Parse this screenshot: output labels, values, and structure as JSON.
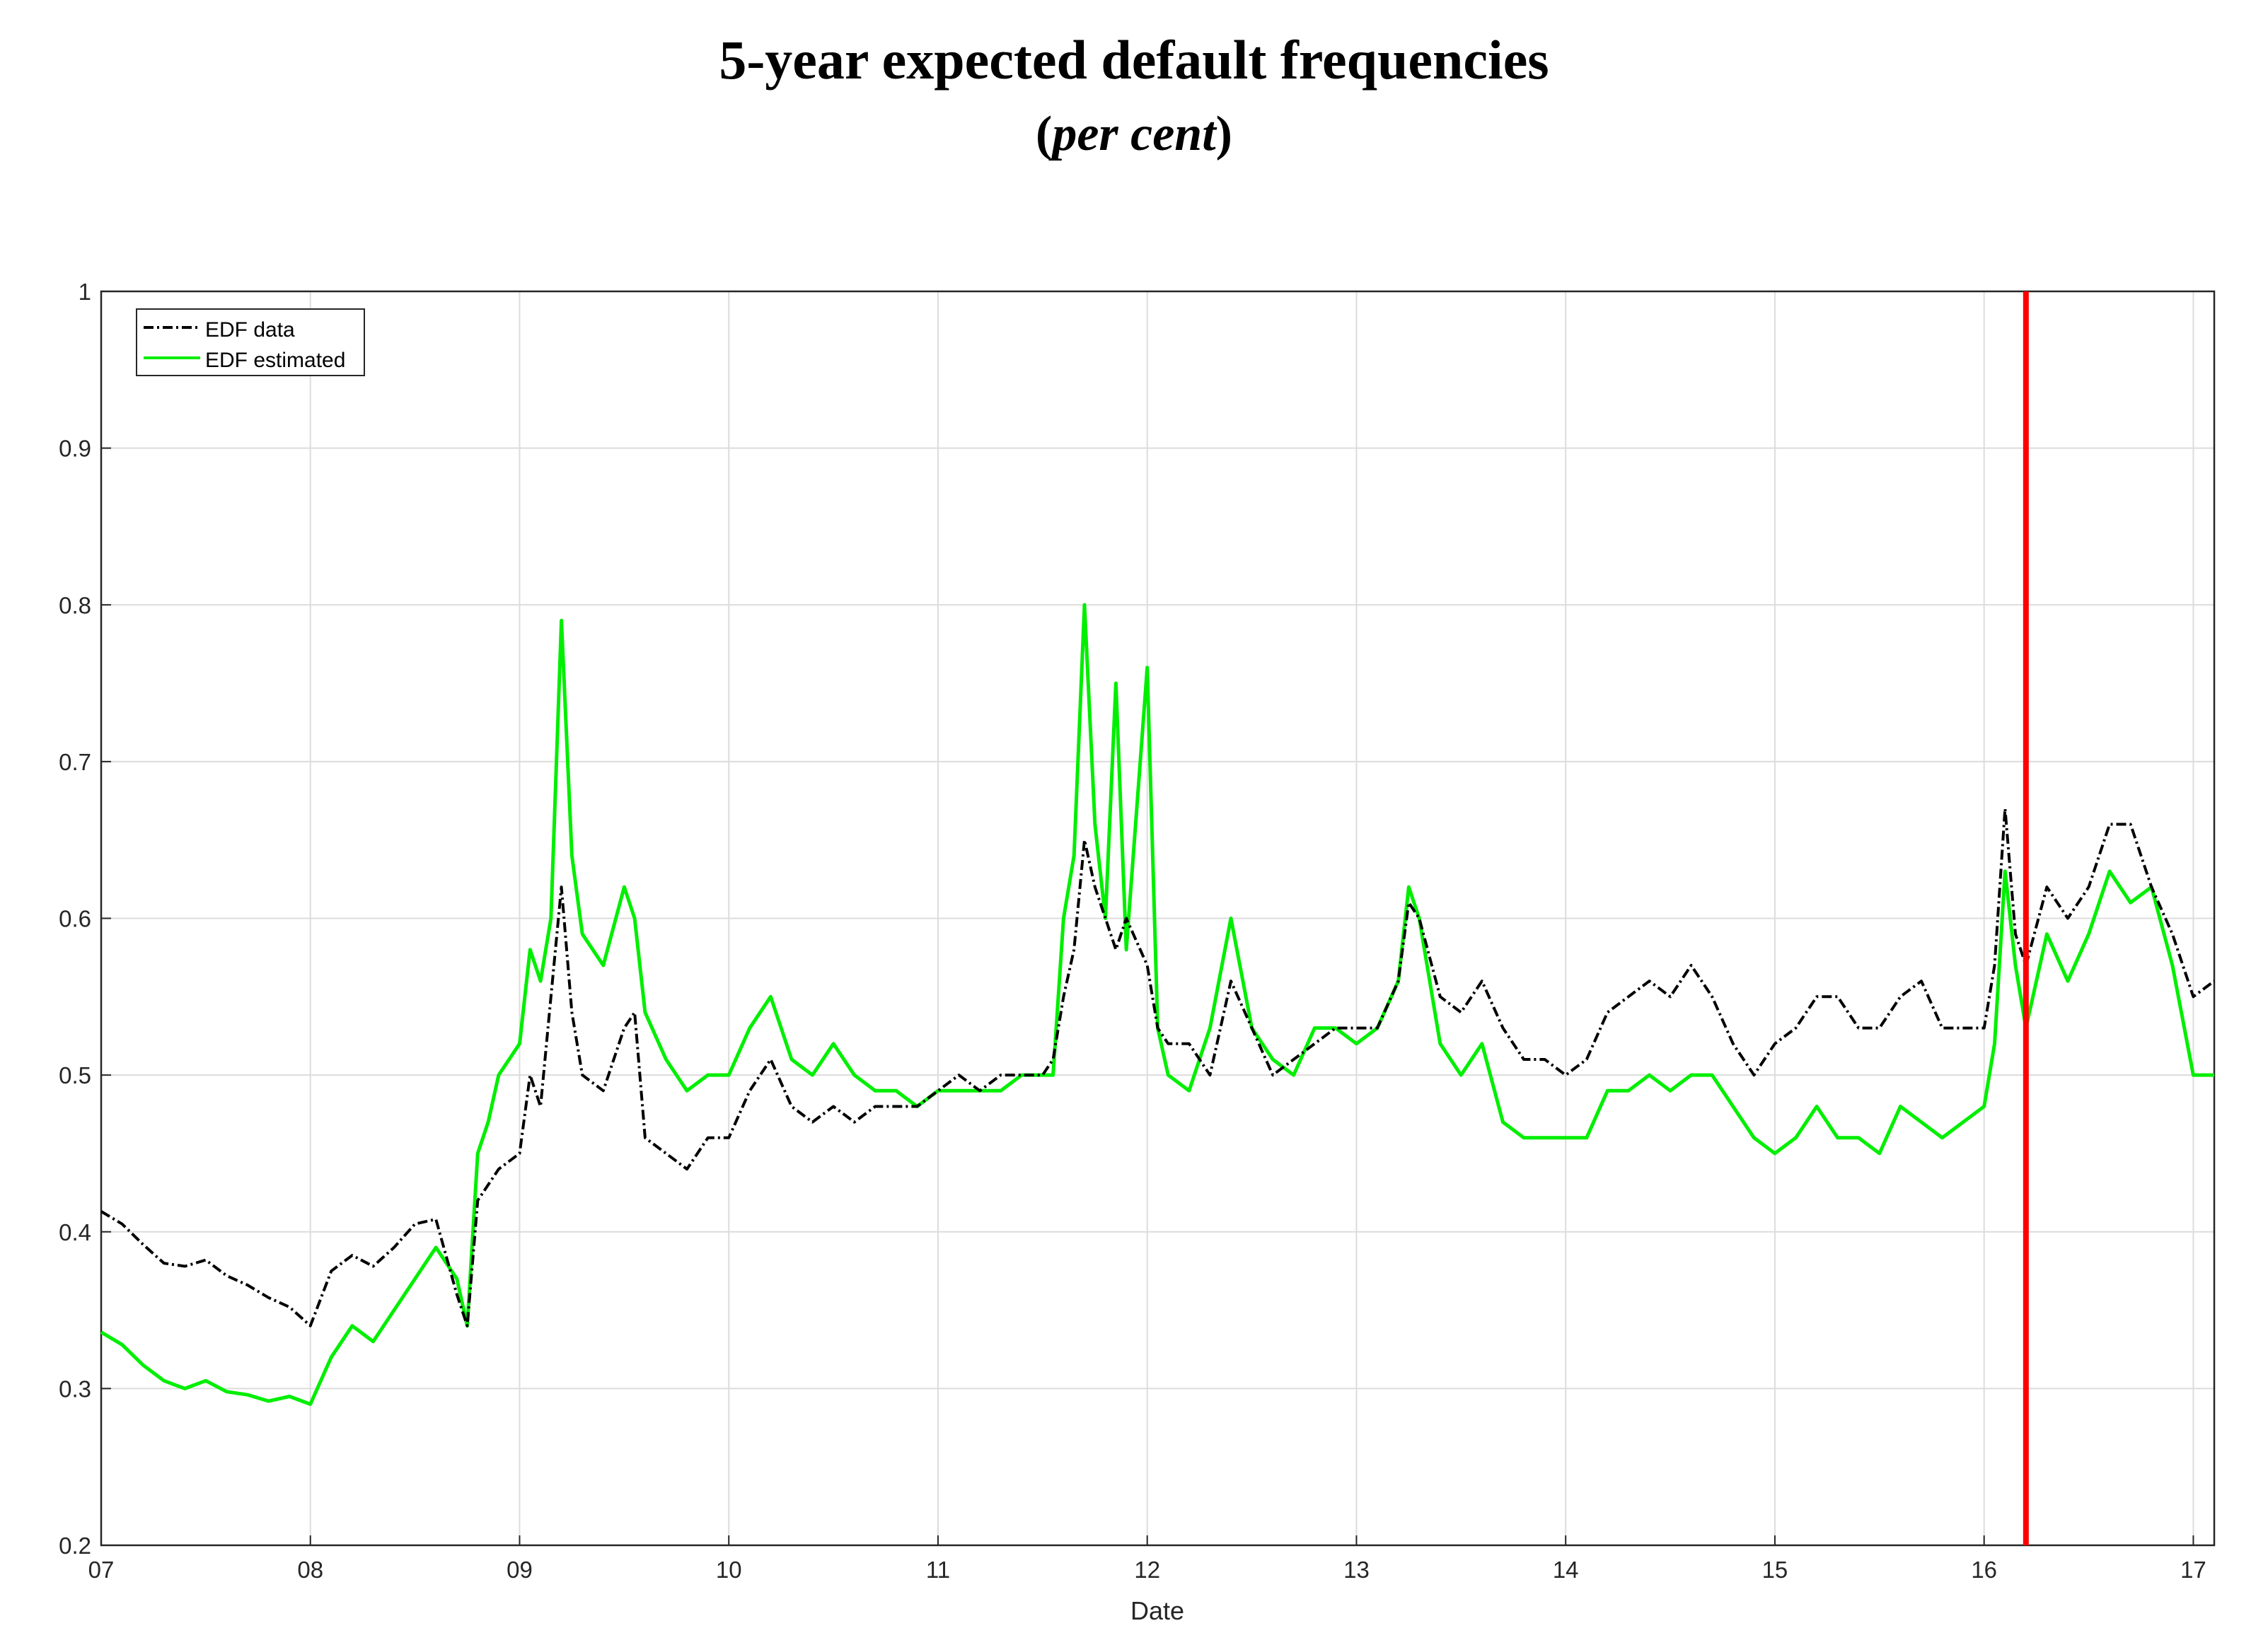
{
  "chart_data": {
    "type": "line",
    "title": "5-year expected default frequencies",
    "subtitle": "per cent",
    "xlabel": "Date",
    "ylabel": "",
    "xlim": [
      7,
      17.1
    ],
    "ylim": [
      0.2,
      1.0
    ],
    "x_ticks": [
      "07",
      "08",
      "09",
      "10",
      "11",
      "12",
      "13",
      "14",
      "15",
      "16",
      "17"
    ],
    "y_ticks": [
      "0.2",
      "0.3",
      "0.4",
      "0.5",
      "0.6",
      "0.7",
      "0.8",
      "0.9",
      "1"
    ],
    "grid": true,
    "legend_position": "top-left",
    "vertical_marker": {
      "x": 16.2,
      "color": "#ff0000"
    },
    "series": [
      {
        "name": "EDF data",
        "color": "#000000",
        "style": "dash-dot",
        "x": [
          7.0,
          7.1,
          7.2,
          7.3,
          7.4,
          7.5,
          7.6,
          7.7,
          7.8,
          7.9,
          8.0,
          8.1,
          8.2,
          8.3,
          8.4,
          8.5,
          8.6,
          8.7,
          8.75,
          8.8,
          8.85,
          8.9,
          9.0,
          9.05,
          9.1,
          9.15,
          9.2,
          9.25,
          9.3,
          9.4,
          9.5,
          9.55,
          9.6,
          9.7,
          9.8,
          9.9,
          10.0,
          10.1,
          10.2,
          10.3,
          10.4,
          10.5,
          10.6,
          10.7,
          10.8,
          10.9,
          11.0,
          11.1,
          11.2,
          11.3,
          11.4,
          11.5,
          11.55,
          11.6,
          11.65,
          11.7,
          11.75,
          11.8,
          11.85,
          11.9,
          12.0,
          12.05,
          12.1,
          12.2,
          12.3,
          12.4,
          12.5,
          12.6,
          12.7,
          12.8,
          12.9,
          13.0,
          13.1,
          13.2,
          13.25,
          13.3,
          13.4,
          13.5,
          13.6,
          13.7,
          13.8,
          13.9,
          14.0,
          14.1,
          14.2,
          14.3,
          14.4,
          14.5,
          14.6,
          14.7,
          14.8,
          14.9,
          15.0,
          15.1,
          15.2,
          15.3,
          15.4,
          15.5,
          15.6,
          15.7,
          15.8,
          15.9,
          16.0,
          16.05,
          16.1,
          16.15,
          16.2,
          16.3,
          16.4,
          16.5,
          16.6,
          16.7,
          16.8,
          16.9,
          17.0,
          17.1
        ],
        "y": [
          0.413,
          0.405,
          0.392,
          0.38,
          0.378,
          0.382,
          0.372,
          0.366,
          0.358,
          0.352,
          0.34,
          0.375,
          0.385,
          0.378,
          0.39,
          0.405,
          0.408,
          0.36,
          0.34,
          0.42,
          0.43,
          0.44,
          0.45,
          0.5,
          0.48,
          0.55,
          0.62,
          0.54,
          0.5,
          0.49,
          0.53,
          0.54,
          0.46,
          0.45,
          0.44,
          0.46,
          0.46,
          0.49,
          0.51,
          0.48,
          0.47,
          0.48,
          0.47,
          0.48,
          0.48,
          0.48,
          0.49,
          0.5,
          0.49,
          0.5,
          0.5,
          0.5,
          0.51,
          0.55,
          0.58,
          0.65,
          0.62,
          0.6,
          0.58,
          0.6,
          0.57,
          0.53,
          0.52,
          0.52,
          0.5,
          0.56,
          0.53,
          0.5,
          0.51,
          0.52,
          0.53,
          0.53,
          0.53,
          0.56,
          0.61,
          0.6,
          0.55,
          0.54,
          0.56,
          0.53,
          0.51,
          0.51,
          0.5,
          0.51,
          0.54,
          0.55,
          0.56,
          0.55,
          0.57,
          0.55,
          0.52,
          0.5,
          0.52,
          0.53,
          0.55,
          0.55,
          0.53,
          0.53,
          0.55,
          0.56,
          0.53,
          0.53,
          0.53,
          0.57,
          0.67,
          0.59,
          0.57,
          0.62,
          0.6,
          0.62,
          0.66,
          0.66,
          0.62,
          0.59,
          0.55,
          0.56
        ],
        "x_ticks_note": ""
      },
      {
        "name": "EDF estimated",
        "color": "#00ee00",
        "style": "solid",
        "x": [
          7.0,
          7.1,
          7.2,
          7.3,
          7.4,
          7.5,
          7.6,
          7.7,
          7.8,
          7.9,
          8.0,
          8.1,
          8.2,
          8.3,
          8.4,
          8.5,
          8.6,
          8.7,
          8.75,
          8.8,
          8.85,
          8.9,
          9.0,
          9.05,
          9.1,
          9.15,
          9.2,
          9.25,
          9.3,
          9.4,
          9.5,
          9.55,
          9.6,
          9.7,
          9.8,
          9.9,
          10.0,
          10.1,
          10.2,
          10.3,
          10.4,
          10.5,
          10.6,
          10.7,
          10.8,
          10.9,
          11.0,
          11.1,
          11.2,
          11.3,
          11.4,
          11.5,
          11.55,
          11.6,
          11.65,
          11.7,
          11.75,
          11.8,
          11.85,
          11.9,
          12.0,
          12.05,
          12.1,
          12.2,
          12.3,
          12.4,
          12.5,
          12.6,
          12.7,
          12.8,
          12.9,
          13.0,
          13.1,
          13.2,
          13.25,
          13.3,
          13.4,
          13.5,
          13.6,
          13.7,
          13.8,
          13.9,
          14.0,
          14.1,
          14.2,
          14.3,
          14.4,
          14.5,
          14.6,
          14.7,
          14.8,
          14.9,
          15.0,
          15.1,
          15.2,
          15.3,
          15.4,
          15.5,
          15.6,
          15.7,
          15.8,
          15.9,
          16.0,
          16.05,
          16.1,
          16.15,
          16.2,
          16.3,
          16.4,
          16.5,
          16.6,
          16.7,
          16.8,
          16.9,
          17.0,
          17.1
        ],
        "y": [
          0.336,
          0.328,
          0.315,
          0.305,
          0.3,
          0.305,
          0.298,
          0.296,
          0.292,
          0.295,
          0.29,
          0.32,
          0.34,
          0.33,
          0.35,
          0.37,
          0.39,
          0.37,
          0.34,
          0.45,
          0.47,
          0.5,
          0.52,
          0.58,
          0.56,
          0.6,
          0.79,
          0.64,
          0.59,
          0.57,
          0.62,
          0.6,
          0.54,
          0.51,
          0.49,
          0.5,
          0.5,
          0.53,
          0.55,
          0.51,
          0.5,
          0.52,
          0.5,
          0.49,
          0.49,
          0.48,
          0.49,
          0.49,
          0.49,
          0.49,
          0.5,
          0.5,
          0.5,
          0.6,
          0.64,
          0.8,
          0.66,
          0.6,
          0.75,
          0.58,
          0.76,
          0.53,
          0.5,
          0.49,
          0.53,
          0.6,
          0.53,
          0.51,
          0.5,
          0.53,
          0.53,
          0.52,
          0.53,
          0.56,
          0.62,
          0.6,
          0.52,
          0.5,
          0.52,
          0.47,
          0.46,
          0.46,
          0.46,
          0.46,
          0.49,
          0.49,
          0.5,
          0.49,
          0.5,
          0.5,
          0.48,
          0.46,
          0.45,
          0.46,
          0.48,
          0.46,
          0.46,
          0.45,
          0.48,
          0.47,
          0.46,
          0.47,
          0.48,
          0.52,
          0.63,
          0.57,
          0.53,
          0.59,
          0.56,
          0.59,
          0.63,
          0.61,
          0.62,
          0.57,
          0.5,
          0.5
        ]
      }
    ]
  }
}
